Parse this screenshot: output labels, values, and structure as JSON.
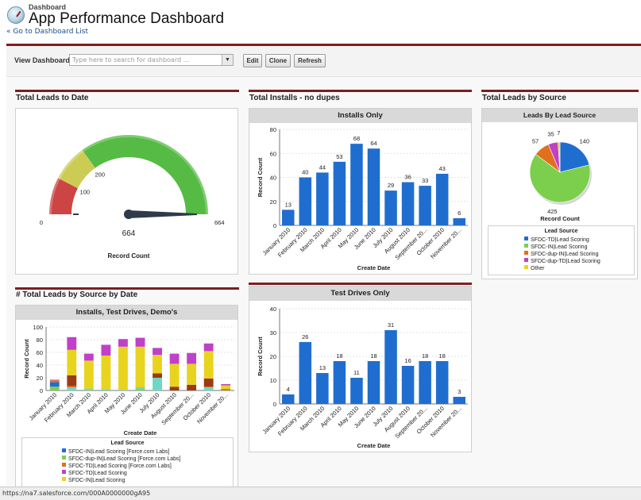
{
  "header": {
    "breadcrumb": "Dashboard",
    "title": "App Performance Dashboard",
    "back_link": "« Go to Dashboard List"
  },
  "toolbar": {
    "view_label": "View Dashboard",
    "search_placeholder": "Type here to search for dashboard ...",
    "edit_label": "Edit",
    "clone_label": "Clone",
    "refresh_label": "Refresh"
  },
  "status_url": "https://na7.salesforce.com/000A0000000gA95",
  "colors": {
    "accent": "#7a1f1f",
    "bar": "#1f6ecf",
    "header_bg": "#d9d9d9"
  },
  "components": {
    "leads_to_date": {
      "title": "Total Leads to Date"
    },
    "installs_no_dupes": {
      "title": "Total Installs - no dupes"
    },
    "leads_by_source": {
      "title": "Total Leads by Source"
    },
    "leads_by_source_date": {
      "title": "# Total Leads by Source by Date"
    }
  },
  "chart_data": [
    {
      "type": "gauge",
      "title": "",
      "value": 664,
      "value_label": "664",
      "min": 0,
      "max": 664,
      "breakpoints": [
        100,
        200
      ],
      "tick_labels": [
        "0",
        "100",
        "200",
        "664"
      ],
      "band_colors": [
        "#cc4444",
        "#cccc55",
        "#55bb44"
      ],
      "xlabel": "Record Count"
    },
    {
      "type": "bar",
      "title": "Installs Only",
      "categories": [
        "January 2010",
        "February 2010",
        "March 2010",
        "April 2010",
        "May 2010",
        "June 2010",
        "July 2010",
        "August 2010",
        "September 20...",
        "October 2010",
        "November 20..."
      ],
      "values": [
        13,
        40,
        44,
        53,
        68,
        64,
        29,
        36,
        33,
        43,
        6
      ],
      "xlabel": "Create Date",
      "ylabel": "Record Count",
      "ylim": [
        0,
        80
      ],
      "yticks": [
        0,
        20,
        40,
        60,
        80
      ],
      "grid": true
    },
    {
      "type": "pie",
      "title": "Leads By Lead Source",
      "slices": [
        {
          "name": "SFDC-TD|Lead Scoring",
          "value": 140,
          "color": "#1f6ecf"
        },
        {
          "name": "SFDC-IN|Lead Scoring",
          "value": 425,
          "color": "#7ccf4c"
        },
        {
          "name": "SFDC-dup-IN|Lead Scoring",
          "value": 57,
          "color": "#e0701e"
        },
        {
          "name": "SFDC-dup-TD|Lead Scoring",
          "value": 35,
          "color": "#c040c8"
        },
        {
          "name": "Other",
          "value": 7,
          "color": "#e8d41e"
        }
      ],
      "xlabel": "Record Count",
      "legend_title": "Lead Source",
      "legend": "bottom"
    },
    {
      "type": "bar",
      "title": "Test Drives Only",
      "categories": [
        "January 2010",
        "February 2010",
        "March 2010",
        "April 2010",
        "May 2010",
        "June 2010",
        "July 2010",
        "August 2010",
        "September 20...",
        "October 2010",
        "November 20..."
      ],
      "values": [
        4,
        26,
        13,
        18,
        11,
        18,
        31,
        16,
        18,
        18,
        3
      ],
      "xlabel": "Create Date",
      "ylabel": "Record Count",
      "ylim": [
        0,
        40
      ],
      "yticks": [
        0,
        10,
        20,
        30,
        40
      ],
      "grid": true
    },
    {
      "type": "stacked-bar",
      "title": "Installs, Test Drives, Demo's",
      "categories": [
        "January 2010",
        "February 2010",
        "March 2010",
        "April 2010",
        "May 2010",
        "June 2010",
        "July 2010",
        "August 2010",
        "September 20...",
        "October 2010",
        "November 20..."
      ],
      "series": [
        {
          "name": "SFDC-IN|Lead Scoring [Force.com Labs]",
          "color": "#1f6ecf",
          "values": [
            7,
            0,
            0,
            0,
            0,
            0,
            0,
            0,
            0,
            0,
            0
          ]
        },
        {
          "name": "SFDC-dup-IN|Lead Scoring [Force.com Labs]",
          "color": "#7ccf4c",
          "values": [
            6,
            0,
            0,
            0,
            0,
            2,
            0,
            0,
            0,
            0,
            0
          ]
        },
        {
          "name": "SFDC-TD|Lead Scoring [Force.com Labs]",
          "color": "#e0701e",
          "values": [
            3,
            2,
            0,
            0,
            0,
            0,
            0,
            0,
            0,
            1,
            1
          ]
        },
        {
          "name": "SFDC-TD|Lead Scoring",
          "color": "#c040c8",
          "values": [
            1,
            20,
            11,
            17,
            12,
            14,
            11,
            16,
            17,
            12,
            2
          ]
        },
        {
          "name": "SFDC-IN|Lead Scoring",
          "color": "#e8d41e",
          "values": [
            0,
            40,
            44,
            53,
            68,
            64,
            29,
            36,
            33,
            43,
            6
          ]
        },
        {
          "name": "",
          "color": "#9a3a16",
          "values": [
            0,
            17,
            0,
            0,
            0,
            0,
            7,
            6,
            9,
            13,
            1
          ]
        },
        {
          "name": "",
          "color": "#6ed8c2",
          "values": [
            0,
            5,
            3,
            2,
            1,
            3,
            20,
            0,
            0,
            5,
            0
          ]
        }
      ],
      "xlabel": "Create Date",
      "ylabel": "Record Count",
      "ylim": [
        0,
        100
      ],
      "yticks": [
        0,
        20,
        40,
        60,
        80,
        100
      ],
      "legend_title": "Lead Source",
      "legend": "bottom",
      "grid": true
    }
  ]
}
